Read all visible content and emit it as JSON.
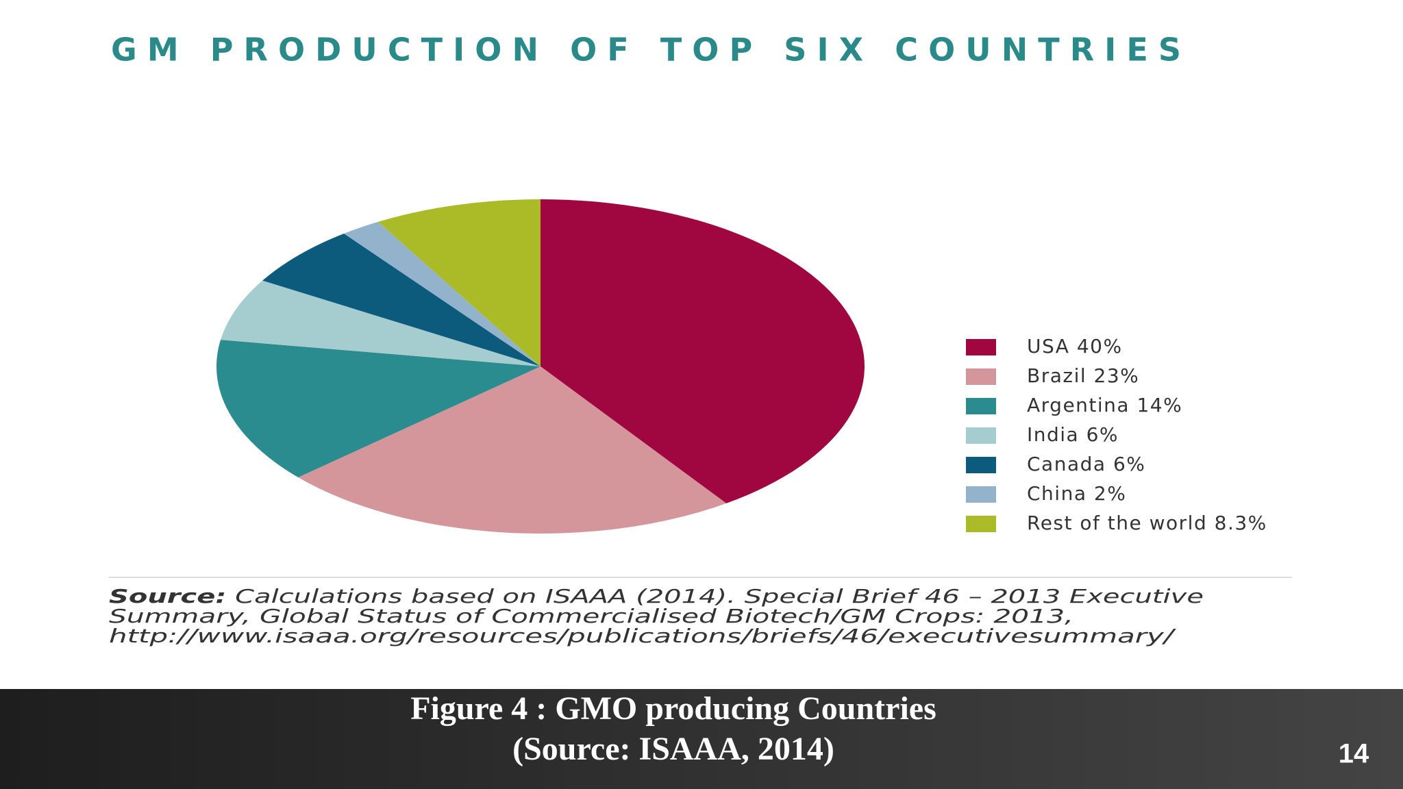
{
  "chart_data": {
    "type": "pie",
    "title": "GM PRODUCTION OF TOP SIX COUNTRIES",
    "categories": [
      "USA 40%",
      "Brazil 23%",
      "Argentina 14%",
      "India 6%",
      "Canada 6%",
      "China 2%",
      "Rest of the world 8.3%"
    ],
    "values": [
      40,
      23,
      14,
      6,
      6,
      2,
      8.3
    ],
    "colors": [
      "#a0063f",
      "#d4969b",
      "#2a8c8f",
      "#a5cdd0",
      "#0c5a7c",
      "#93b3cc",
      "#abbb28"
    ],
    "source_label": "Source:",
    "source_lines": [
      "Calculations based on ISAAA (2014). Special Brief 46 – 2013 Executive",
      "Summary, Global Status of Commercialised Biotech/GM Crops: 2013,",
      "http://www.isaaa.org/resources/publications/briefs/46/executivesummary/"
    ]
  },
  "caption": [
    "Figure 4 : GMO producing Countries",
    "(Source: ISAAA, 2014)"
  ],
  "page_number": "14"
}
